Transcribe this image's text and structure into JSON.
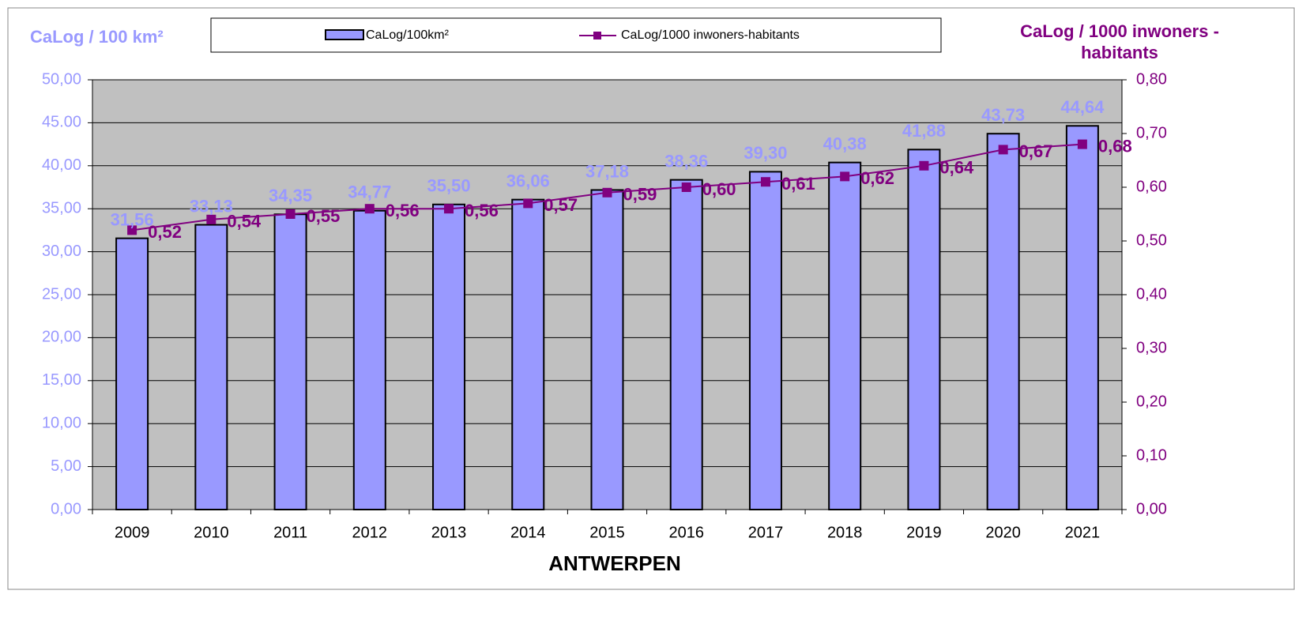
{
  "chart_data": {
    "type": "bar",
    "x_label": "ANTWERPEN",
    "y_label": "CaLog / 100 km²",
    "y2_label": "CaLog / 1000 inwoners - habitants",
    "categories": [
      "2009",
      "2010",
      "2011",
      "2012",
      "2013",
      "2014",
      "2015",
      "2016",
      "2017",
      "2018",
      "2019",
      "2020",
      "2021"
    ],
    "series": [
      {
        "name": "CaLog/100km²",
        "type": "bar",
        "color": "#9999ff",
        "values": [
          31.56,
          33.13,
          34.35,
          34.77,
          35.5,
          36.06,
          37.18,
          38.36,
          39.3,
          40.38,
          41.88,
          43.73,
          44.64
        ],
        "value_labels": [
          "31,56",
          "33,13",
          "34,35",
          "34,77",
          "35,50",
          "36,06",
          "37,18",
          "38,36",
          "39,30",
          "40,38",
          "41,88",
          "43,73",
          "44,64"
        ]
      },
      {
        "name": "CaLog/1000 inwoners-habitants",
        "type": "line",
        "axis": "y2",
        "color": "#800080",
        "values": [
          0.52,
          0.54,
          0.55,
          0.56,
          0.56,
          0.57,
          0.59,
          0.6,
          0.61,
          0.62,
          0.64,
          0.67,
          0.68
        ],
        "value_labels": [
          "0,52",
          "0,54",
          "0,55",
          "0,56",
          "0,56",
          "0,57",
          "0,59",
          "0,60",
          "0,61",
          "0,62",
          "0,64",
          "0,67",
          "0,68"
        ]
      }
    ],
    "ylim": [
      0,
      50
    ],
    "yticks": [
      {
        "value": 0,
        "label": "0,00"
      },
      {
        "value": 5,
        "label": "5,00"
      },
      {
        "value": 10,
        "label": "10,00"
      },
      {
        "value": 15,
        "label": "15,00"
      },
      {
        "value": 20,
        "label": "20,00"
      },
      {
        "value": 25,
        "label": "25,00"
      },
      {
        "value": 30,
        "label": "30,00"
      },
      {
        "value": 35,
        "label": "35,00"
      },
      {
        "value": 40,
        "label": "40,00"
      },
      {
        "value": 45,
        "label": "45.00"
      },
      {
        "value": 50,
        "label": "50,00"
      }
    ],
    "y2lim": [
      0,
      0.8
    ],
    "y2ticks": [
      {
        "value": 0,
        "label": "0,00"
      },
      {
        "value": 0.1,
        "label": "0,10"
      },
      {
        "value": 0.2,
        "label": "0,20"
      },
      {
        "value": 0.3,
        "label": "0,30"
      },
      {
        "value": 0.4,
        "label": "0,40"
      },
      {
        "value": 0.5,
        "label": "0,50"
      },
      {
        "value": 0.6,
        "label": "0,60"
      },
      {
        "value": 0.7,
        "label": "0,70"
      },
      {
        "value": 0.8,
        "label": "0,80"
      }
    ],
    "grid": true,
    "legend": "top"
  }
}
